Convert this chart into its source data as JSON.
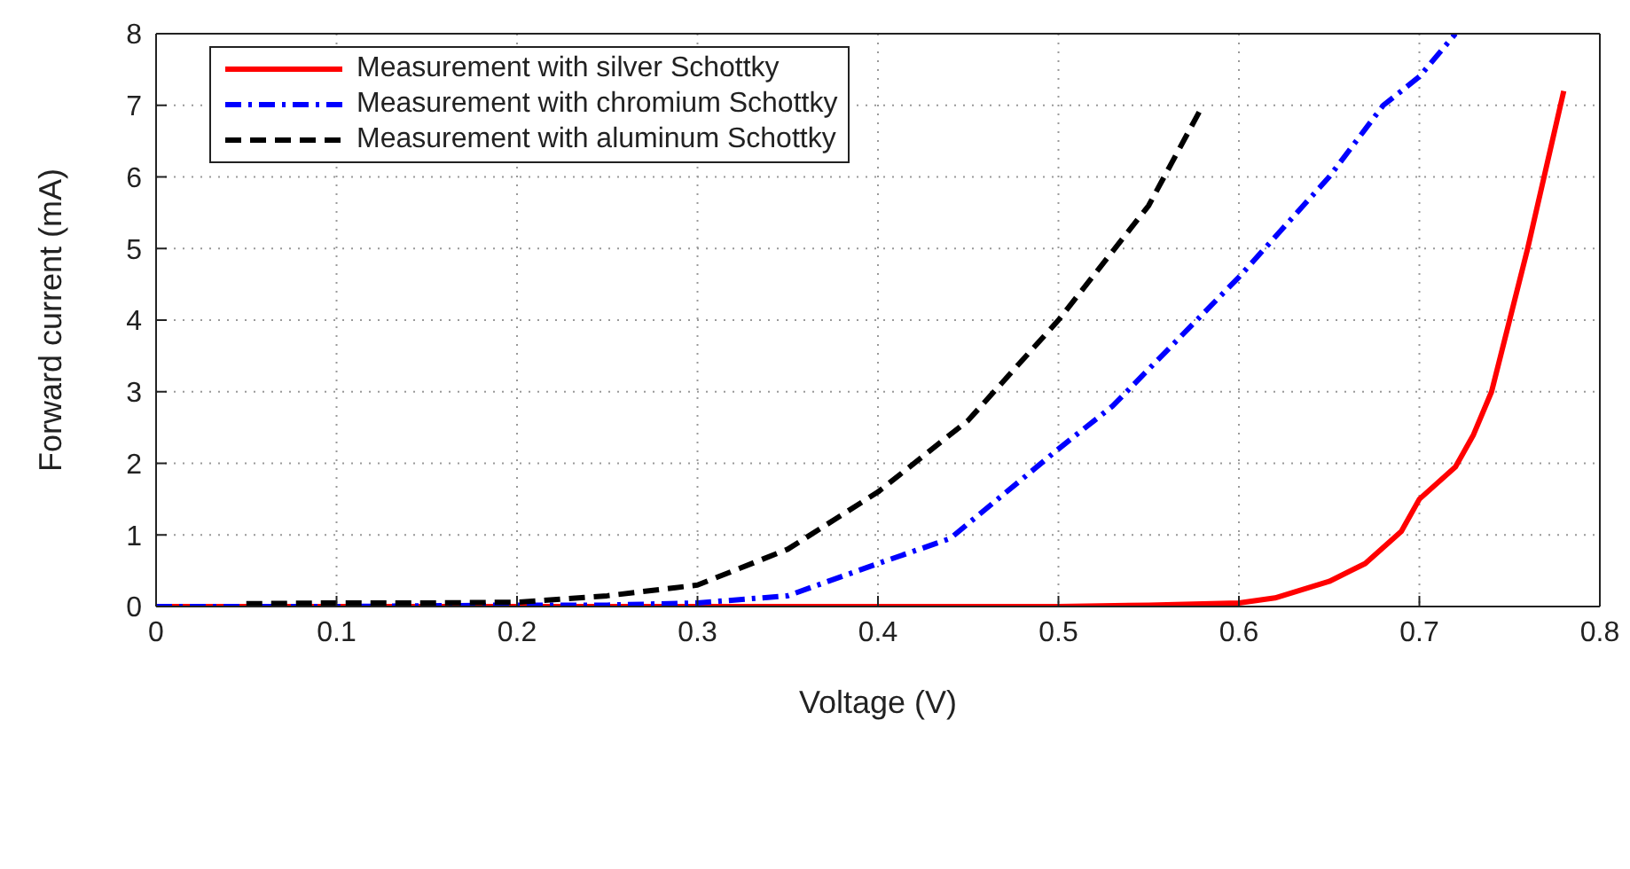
{
  "chart_data": {
    "type": "line",
    "xlabel": "Voltage (V)",
    "ylabel": "Forward current (mA)",
    "xlim": [
      0,
      0.8
    ],
    "ylim": [
      0,
      8
    ],
    "xticks": [
      0,
      0.1,
      0.2,
      0.3,
      0.4,
      0.5,
      0.6,
      0.7,
      0.8
    ],
    "yticks": [
      0,
      1,
      2,
      3,
      4,
      5,
      6,
      7,
      8
    ],
    "grid": true,
    "legend": "top left",
    "marker": "none",
    "series": [
      {
        "name": "Measurement with silver Schottky",
        "color": "#ff0000",
        "line_style": "solid",
        "x": [
          0,
          0.1,
          0.2,
          0.3,
          0.4,
          0.5,
          0.55,
          0.6,
          0.62,
          0.65,
          0.67,
          0.69,
          0.7,
          0.72,
          0.73,
          0.74,
          0.75,
          0.76,
          0.78
        ],
        "values": [
          0,
          0,
          0,
          0,
          0,
          0,
          0.02,
          0.05,
          0.12,
          0.35,
          0.6,
          1.05,
          1.5,
          1.95,
          2.4,
          3.0,
          4.0,
          5.0,
          7.2
        ]
      },
      {
        "name": "Measurement with chromium Schottky",
        "color": "#0000ff",
        "line_style": "dashdot",
        "x": [
          0,
          0.1,
          0.2,
          0.25,
          0.3,
          0.35,
          0.4,
          0.44,
          0.5,
          0.53,
          0.6,
          0.65,
          0.68,
          0.7,
          0.72
        ],
        "values": [
          0,
          0,
          0.02,
          0.02,
          0.05,
          0.15,
          0.6,
          0.95,
          2.2,
          2.8,
          4.6,
          6.0,
          7.0,
          7.4,
          8.0
        ]
      },
      {
        "name": "Measurement with aluminum Schottky",
        "color": "#000000",
        "line_style": "dashed",
        "x": [
          0.05,
          0.1,
          0.15,
          0.2,
          0.25,
          0.3,
          0.35,
          0.4,
          0.45,
          0.5,
          0.55,
          0.58
        ],
        "values": [
          0.04,
          0.05,
          0.05,
          0.06,
          0.15,
          0.3,
          0.8,
          1.6,
          2.6,
          4.0,
          5.6,
          7.0
        ]
      }
    ]
  }
}
